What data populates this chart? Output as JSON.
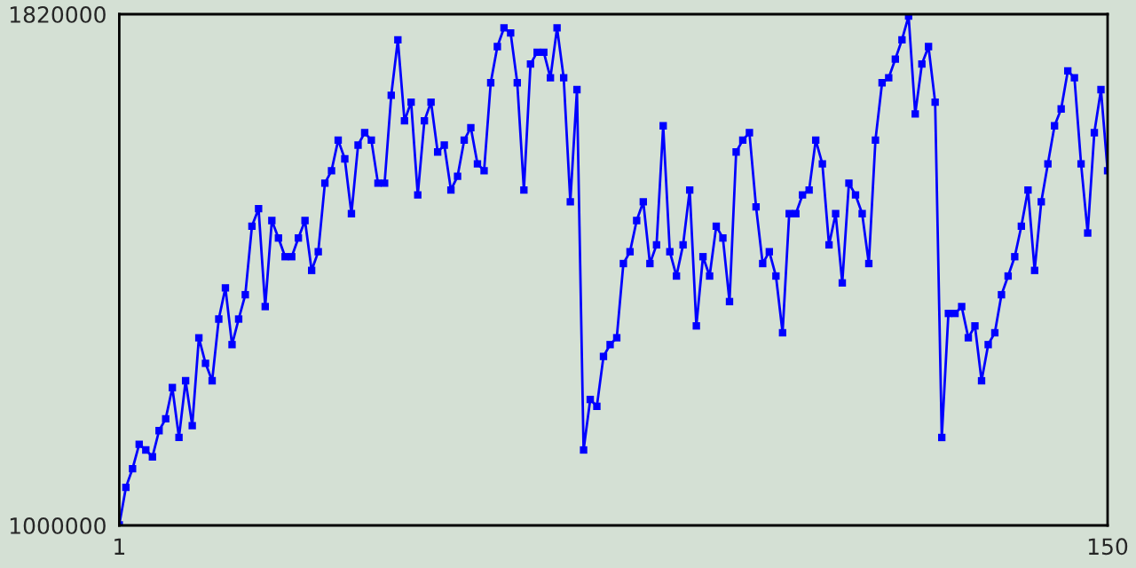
{
  "chart_data": {
    "type": "line",
    "x": [
      1,
      2,
      3,
      4,
      5,
      6,
      7,
      8,
      9,
      10,
      11,
      12,
      13,
      14,
      15,
      16,
      17,
      18,
      19,
      20,
      21,
      22,
      23,
      24,
      25,
      26,
      27,
      28,
      29,
      30,
      31,
      32,
      33,
      34,
      35,
      36,
      37,
      38,
      39,
      40,
      41,
      42,
      43,
      44,
      45,
      46,
      47,
      48,
      49,
      50,
      51,
      52,
      53,
      54,
      55,
      56,
      57,
      58,
      59,
      60,
      61,
      62,
      63,
      64,
      65,
      66,
      67,
      68,
      69,
      70,
      71,
      72,
      73,
      74,
      75,
      76,
      77,
      78,
      79,
      80,
      81,
      82,
      83,
      84,
      85,
      86,
      87,
      88,
      89,
      90,
      91,
      92,
      93,
      94,
      95,
      96,
      97,
      98,
      99,
      100,
      101,
      102,
      103,
      104,
      105,
      106,
      107,
      108,
      109,
      110,
      111,
      112,
      113,
      114,
      115,
      116,
      117,
      118,
      119,
      120,
      121,
      122,
      123,
      124,
      125,
      126,
      127,
      128,
      129,
      130,
      131,
      132,
      133,
      134,
      135,
      136,
      137,
      138,
      139,
      140,
      141,
      142,
      143,
      144,
      145,
      146,
      147,
      148,
      149,
      150
    ],
    "series": [
      {
        "color": "#0000ff",
        "values": [
          1001000,
          1061000,
          1091000,
          1130000,
          1121000,
          1110000,
          1152000,
          1171000,
          1221000,
          1141000,
          1232000,
          1160000,
          1301000,
          1260000,
          1232000,
          1331000,
          1381000,
          1290000,
          1331000,
          1370000,
          1480000,
          1508000,
          1351000,
          1489000,
          1461000,
          1431000,
          1431000,
          1461000,
          1489000,
          1409000,
          1439000,
          1549000,
          1569000,
          1618000,
          1588000,
          1500000,
          1610000,
          1630000,
          1618000,
          1549000,
          1549000,
          1690000,
          1779000,
          1649000,
          1679000,
          1530000,
          1649000,
          1679000,
          1599000,
          1610000,
          1538000,
          1560000,
          1618000,
          1638000,
          1580000,
          1569000,
          1710000,
          1768000,
          1798000,
          1790000,
          1710000,
          1538000,
          1740000,
          1759000,
          1759000,
          1718000,
          1798000,
          1718000,
          1519000,
          1699000,
          1121000,
          1202000,
          1191000,
          1271000,
          1290000,
          1301000,
          1420000,
          1439000,
          1489000,
          1519000,
          1420000,
          1450000,
          1641000,
          1439000,
          1400000,
          1450000,
          1538000,
          1320000,
          1431000,
          1400000,
          1480000,
          1461000,
          1359000,
          1599000,
          1618000,
          1630000,
          1511000,
          1420000,
          1439000,
          1400000,
          1309000,
          1500000,
          1500000,
          1530000,
          1538000,
          1618000,
          1580000,
          1450000,
          1500000,
          1389000,
          1549000,
          1530000,
          1500000,
          1420000,
          1618000,
          1710000,
          1718000,
          1748000,
          1779000,
          1817000,
          1660000,
          1740000,
          1768000,
          1679000,
          1141000,
          1340000,
          1340000,
          1351000,
          1301000,
          1320000,
          1232000,
          1290000,
          1309000,
          1370000,
          1400000,
          1431000,
          1480000,
          1538000,
          1409000,
          1519000,
          1580000,
          1641000,
          1668000,
          1729000,
          1718000,
          1580000,
          1469000,
          1630000,
          1699000,
          1569000
        ]
      }
    ],
    "xlim": [
      1,
      150
    ],
    "xticks": [
      1,
      150
    ],
    "ylim": [
      1000000,
      1820000
    ],
    "yticks": [
      1000000,
      1820000
    ],
    "marker": "square",
    "line_style": "solid"
  }
}
